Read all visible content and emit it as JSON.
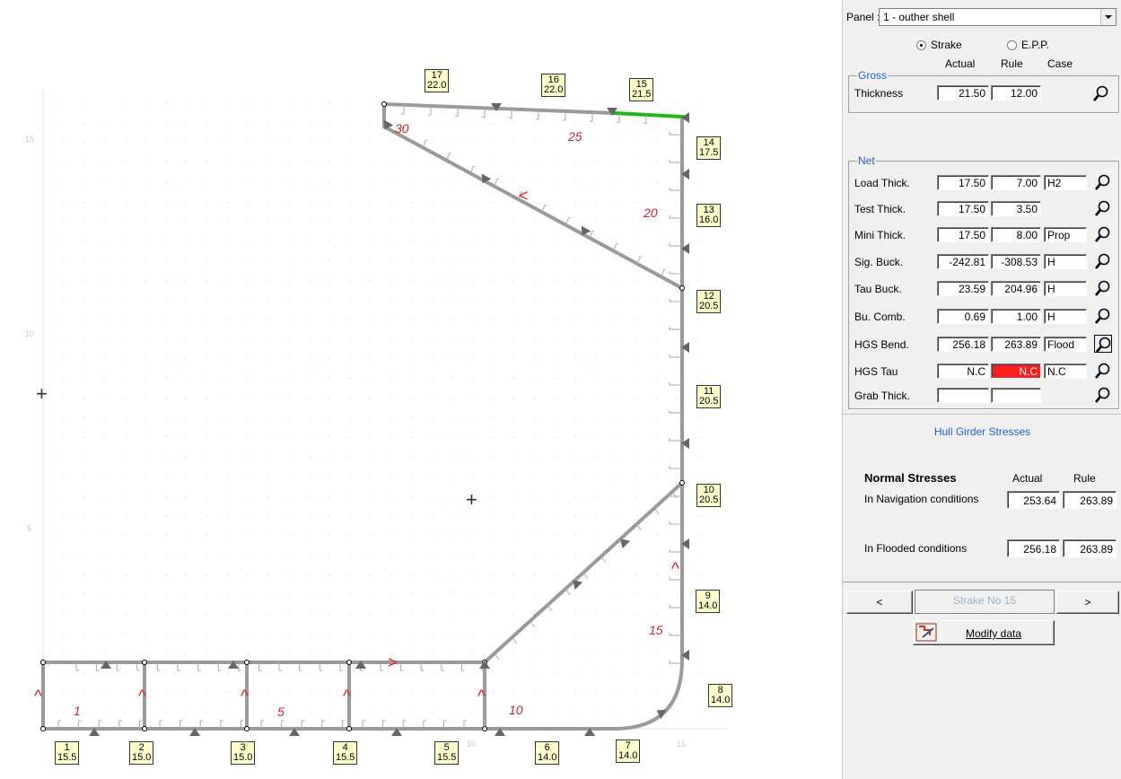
{
  "drawing": {
    "segments": [
      {
        "num": "1",
        "thick": "15.5"
      },
      {
        "num": "2",
        "thick": "15.0"
      },
      {
        "num": "3",
        "thick": "15.0"
      },
      {
        "num": "4",
        "thick": "15.5"
      },
      {
        "num": "5",
        "thick": "15.5"
      },
      {
        "num": "6",
        "thick": "14.0"
      },
      {
        "num": "7",
        "thick": "14.0"
      },
      {
        "num": "8",
        "thick": "14.0"
      },
      {
        "num": "9",
        "thick": "14.0"
      },
      {
        "num": "10",
        "thick": "20.5"
      },
      {
        "num": "11",
        "thick": "20.5"
      },
      {
        "num": "12",
        "thick": "20.5"
      },
      {
        "num": "13",
        "thick": "16.0"
      },
      {
        "num": "14",
        "thick": "17.5"
      },
      {
        "num": "15",
        "thick": "21.5"
      },
      {
        "num": "16",
        "thick": "22.0"
      },
      {
        "num": "17",
        "thick": "22.0"
      }
    ],
    "red_numbers": [
      "1",
      "5",
      "10",
      "15",
      "20",
      "25",
      "30"
    ],
    "panel_arrows": [
      "1",
      "2",
      "3",
      "4",
      "5",
      "6",
      "7",
      "8"
    ],
    "centroids": [
      "1",
      "2"
    ],
    "axis_ticks": [
      "5",
      "10",
      "15"
    ],
    "selected_color": "#22b515",
    "line_color": "#9a9a9a"
  },
  "panel": {
    "panel_label": "Panel :",
    "panel_value": "1 - outher shell",
    "radio_strake": "Strake",
    "radio_epp": "E.P.P.",
    "col_actual": "Actual",
    "col_rule": "Rule",
    "col_case": "Case",
    "gross_title": "Gross",
    "thickness_label": "Thickness",
    "thickness_actual": "21.50",
    "thickness_rule": "12.00",
    "net_title": "Net",
    "rows": [
      {
        "label": "Load Thick.",
        "actual": "17.50",
        "rule": "7.00",
        "case": "H2"
      },
      {
        "label": "Test Thick.",
        "actual": "17.50",
        "rule": "3.50",
        "case": ""
      },
      {
        "label": "Mini Thick.",
        "actual": "17.50",
        "rule": "8.00",
        "case": "Prop"
      },
      {
        "label": "Sig. Buck.",
        "actual": "-242.81",
        "rule": "-308.53",
        "case": "H"
      },
      {
        "label": "Tau Buck.",
        "actual": "23.59",
        "rule": "204.96",
        "case": "H"
      },
      {
        "label": "Bu. Comb.",
        "actual": "0.69",
        "rule": "1.00",
        "case": "H"
      },
      {
        "label": "HGS Bend.",
        "actual": "256.18",
        "rule": "263.89",
        "case": "Flood"
      },
      {
        "label": "HGS Tau",
        "actual": "N.C",
        "rule": "N.C",
        "case": "N.C"
      },
      {
        "label": "Grab Thick.",
        "actual": "",
        "rule": "",
        "case": ""
      }
    ],
    "hgs_title": "Hull Girder Stresses",
    "normal_stresses": "Normal Stresses",
    "ns_actual": "Actual",
    "ns_rule": "Rule",
    "nav_label": "In Navigation conditions",
    "nav_actual": "253.64",
    "nav_rule": "263.89",
    "flood_label": "In Flooded conditions",
    "flood_actual": "256.18",
    "flood_rule": "263.89",
    "prev": "<",
    "strake_no": "Strake No 15",
    "next": ">",
    "modify": "Modify data",
    "colors": {
      "accent": "#1f5fcf",
      "alert": "#ff1c1c"
    }
  }
}
